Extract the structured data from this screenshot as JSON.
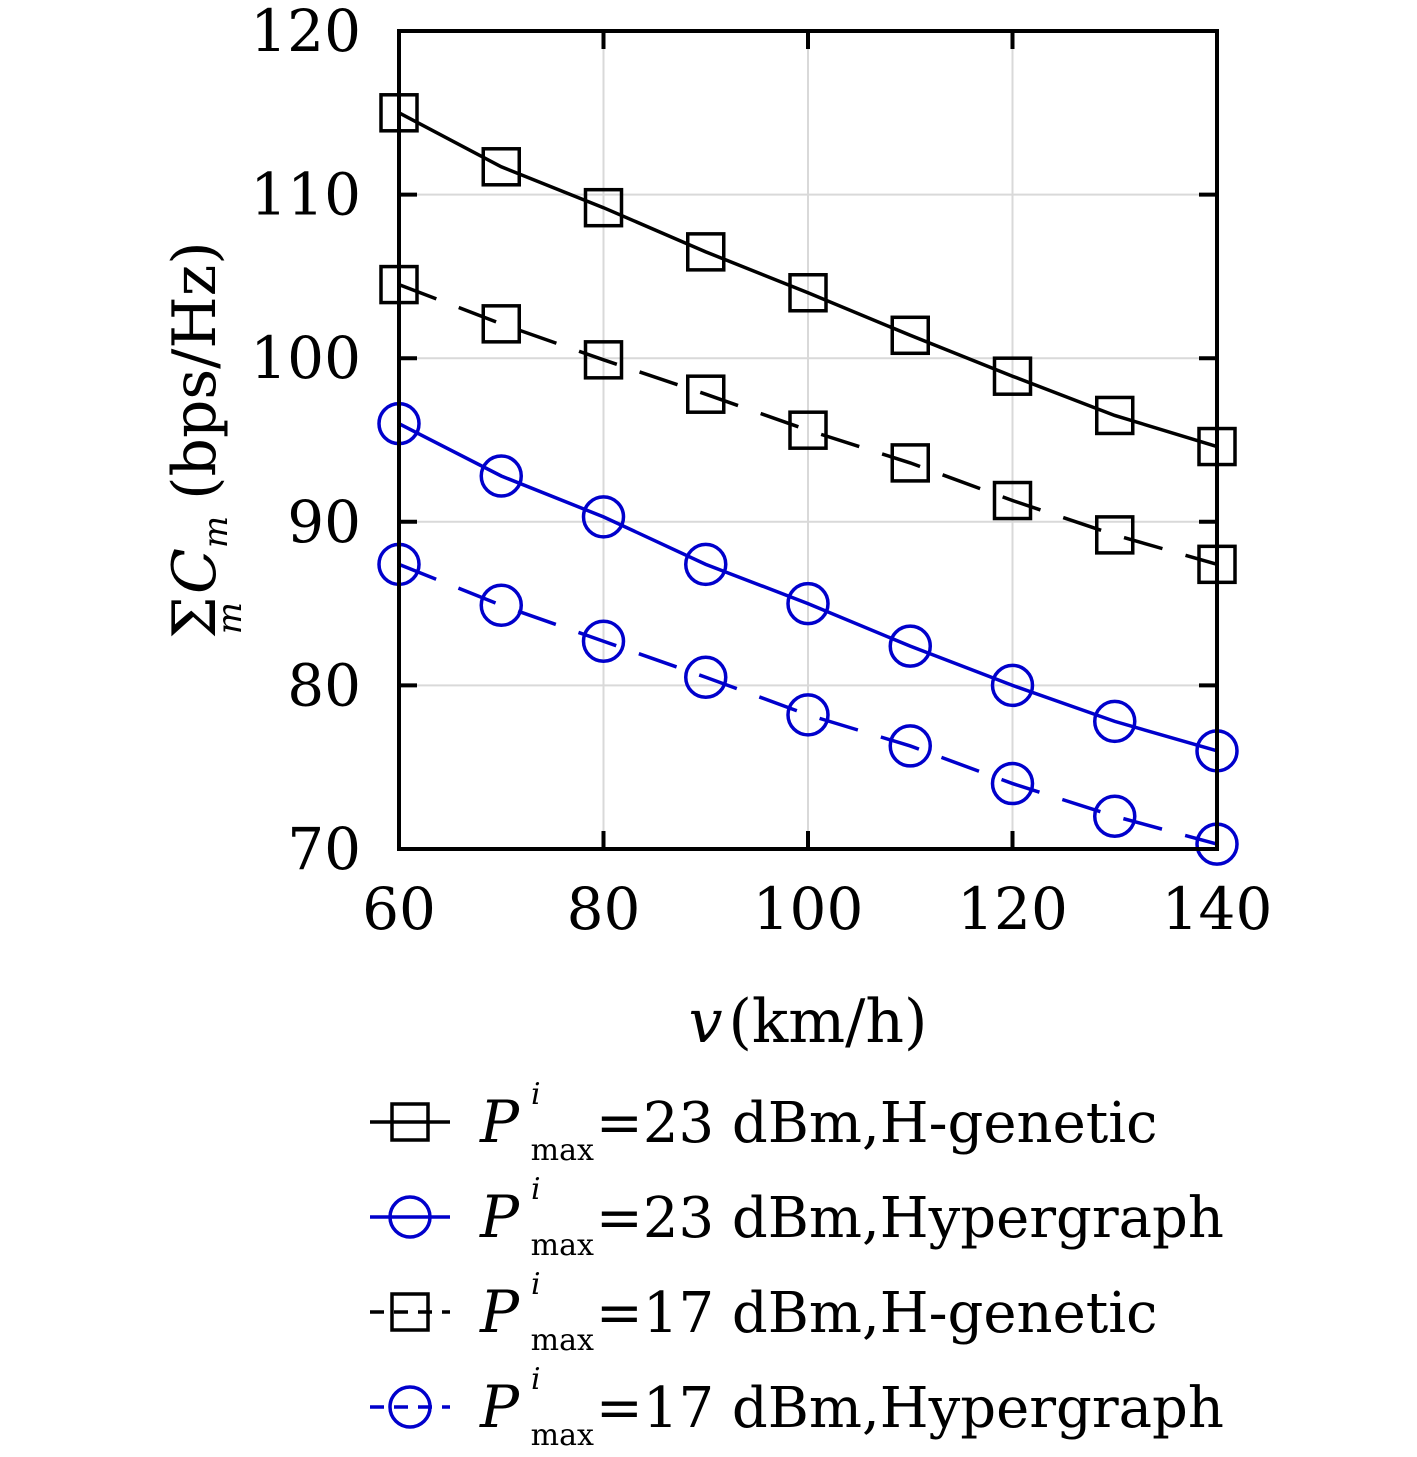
{
  "chart_data": {
    "type": "line",
    "xlabel": {
      "var": "v",
      "unit": "(km/h)"
    },
    "ylabel": {
      "sum_symbol": "Σ",
      "sum_index": "m",
      "var": "C",
      "var_subscript": "m",
      "unit": "(bps/Hz)"
    },
    "xlim": [
      60,
      140
    ],
    "ylim": [
      70,
      120
    ],
    "xticks": [
      "60",
      "80",
      "100",
      "120",
      "140"
    ],
    "yticks": [
      "70",
      "80",
      "90",
      "100",
      "110",
      "120"
    ],
    "grid": true,
    "legend_position": "below-plot",
    "x": [
      60,
      70,
      80,
      90,
      100,
      110,
      120,
      130,
      140
    ],
    "series": [
      {
        "name": "=23 dBm,H-genetic",
        "legend_var": "P",
        "legend_sup": "i",
        "legend_sub": "max",
        "color": "#000000",
        "line": "solid",
        "marker": "square",
        "values": [
          115.0,
          111.7,
          109.2,
          106.5,
          104.0,
          101.4,
          98.9,
          96.5,
          94.6
        ]
      },
      {
        "name": "=23 dBm,Hypergraph",
        "legend_var": "P",
        "legend_sup": "i",
        "legend_sub": "max",
        "color": "#0000cc",
        "line": "solid",
        "marker": "circle",
        "values": [
          96.0,
          92.8,
          90.3,
          87.4,
          85.0,
          82.4,
          80.0,
          77.8,
          76.0
        ]
      },
      {
        "name": "=17 dBm,H-genetic",
        "legend_var": "P",
        "legend_sup": "i",
        "legend_sub": "max",
        "color": "#000000",
        "line": "dashed",
        "marker": "square",
        "values": [
          104.5,
          102.1,
          99.9,
          97.8,
          95.6,
          93.6,
          91.3,
          89.2,
          87.4
        ]
      },
      {
        "name": "=17 dBm,Hypergraph",
        "legend_var": "P",
        "legend_sup": "i",
        "legend_sub": "max",
        "color": "#0000cc",
        "line": "dashed",
        "marker": "circle",
        "values": [
          87.4,
          84.9,
          82.7,
          80.5,
          78.2,
          76.3,
          74.0,
          72.0,
          70.3
        ]
      }
    ]
  }
}
